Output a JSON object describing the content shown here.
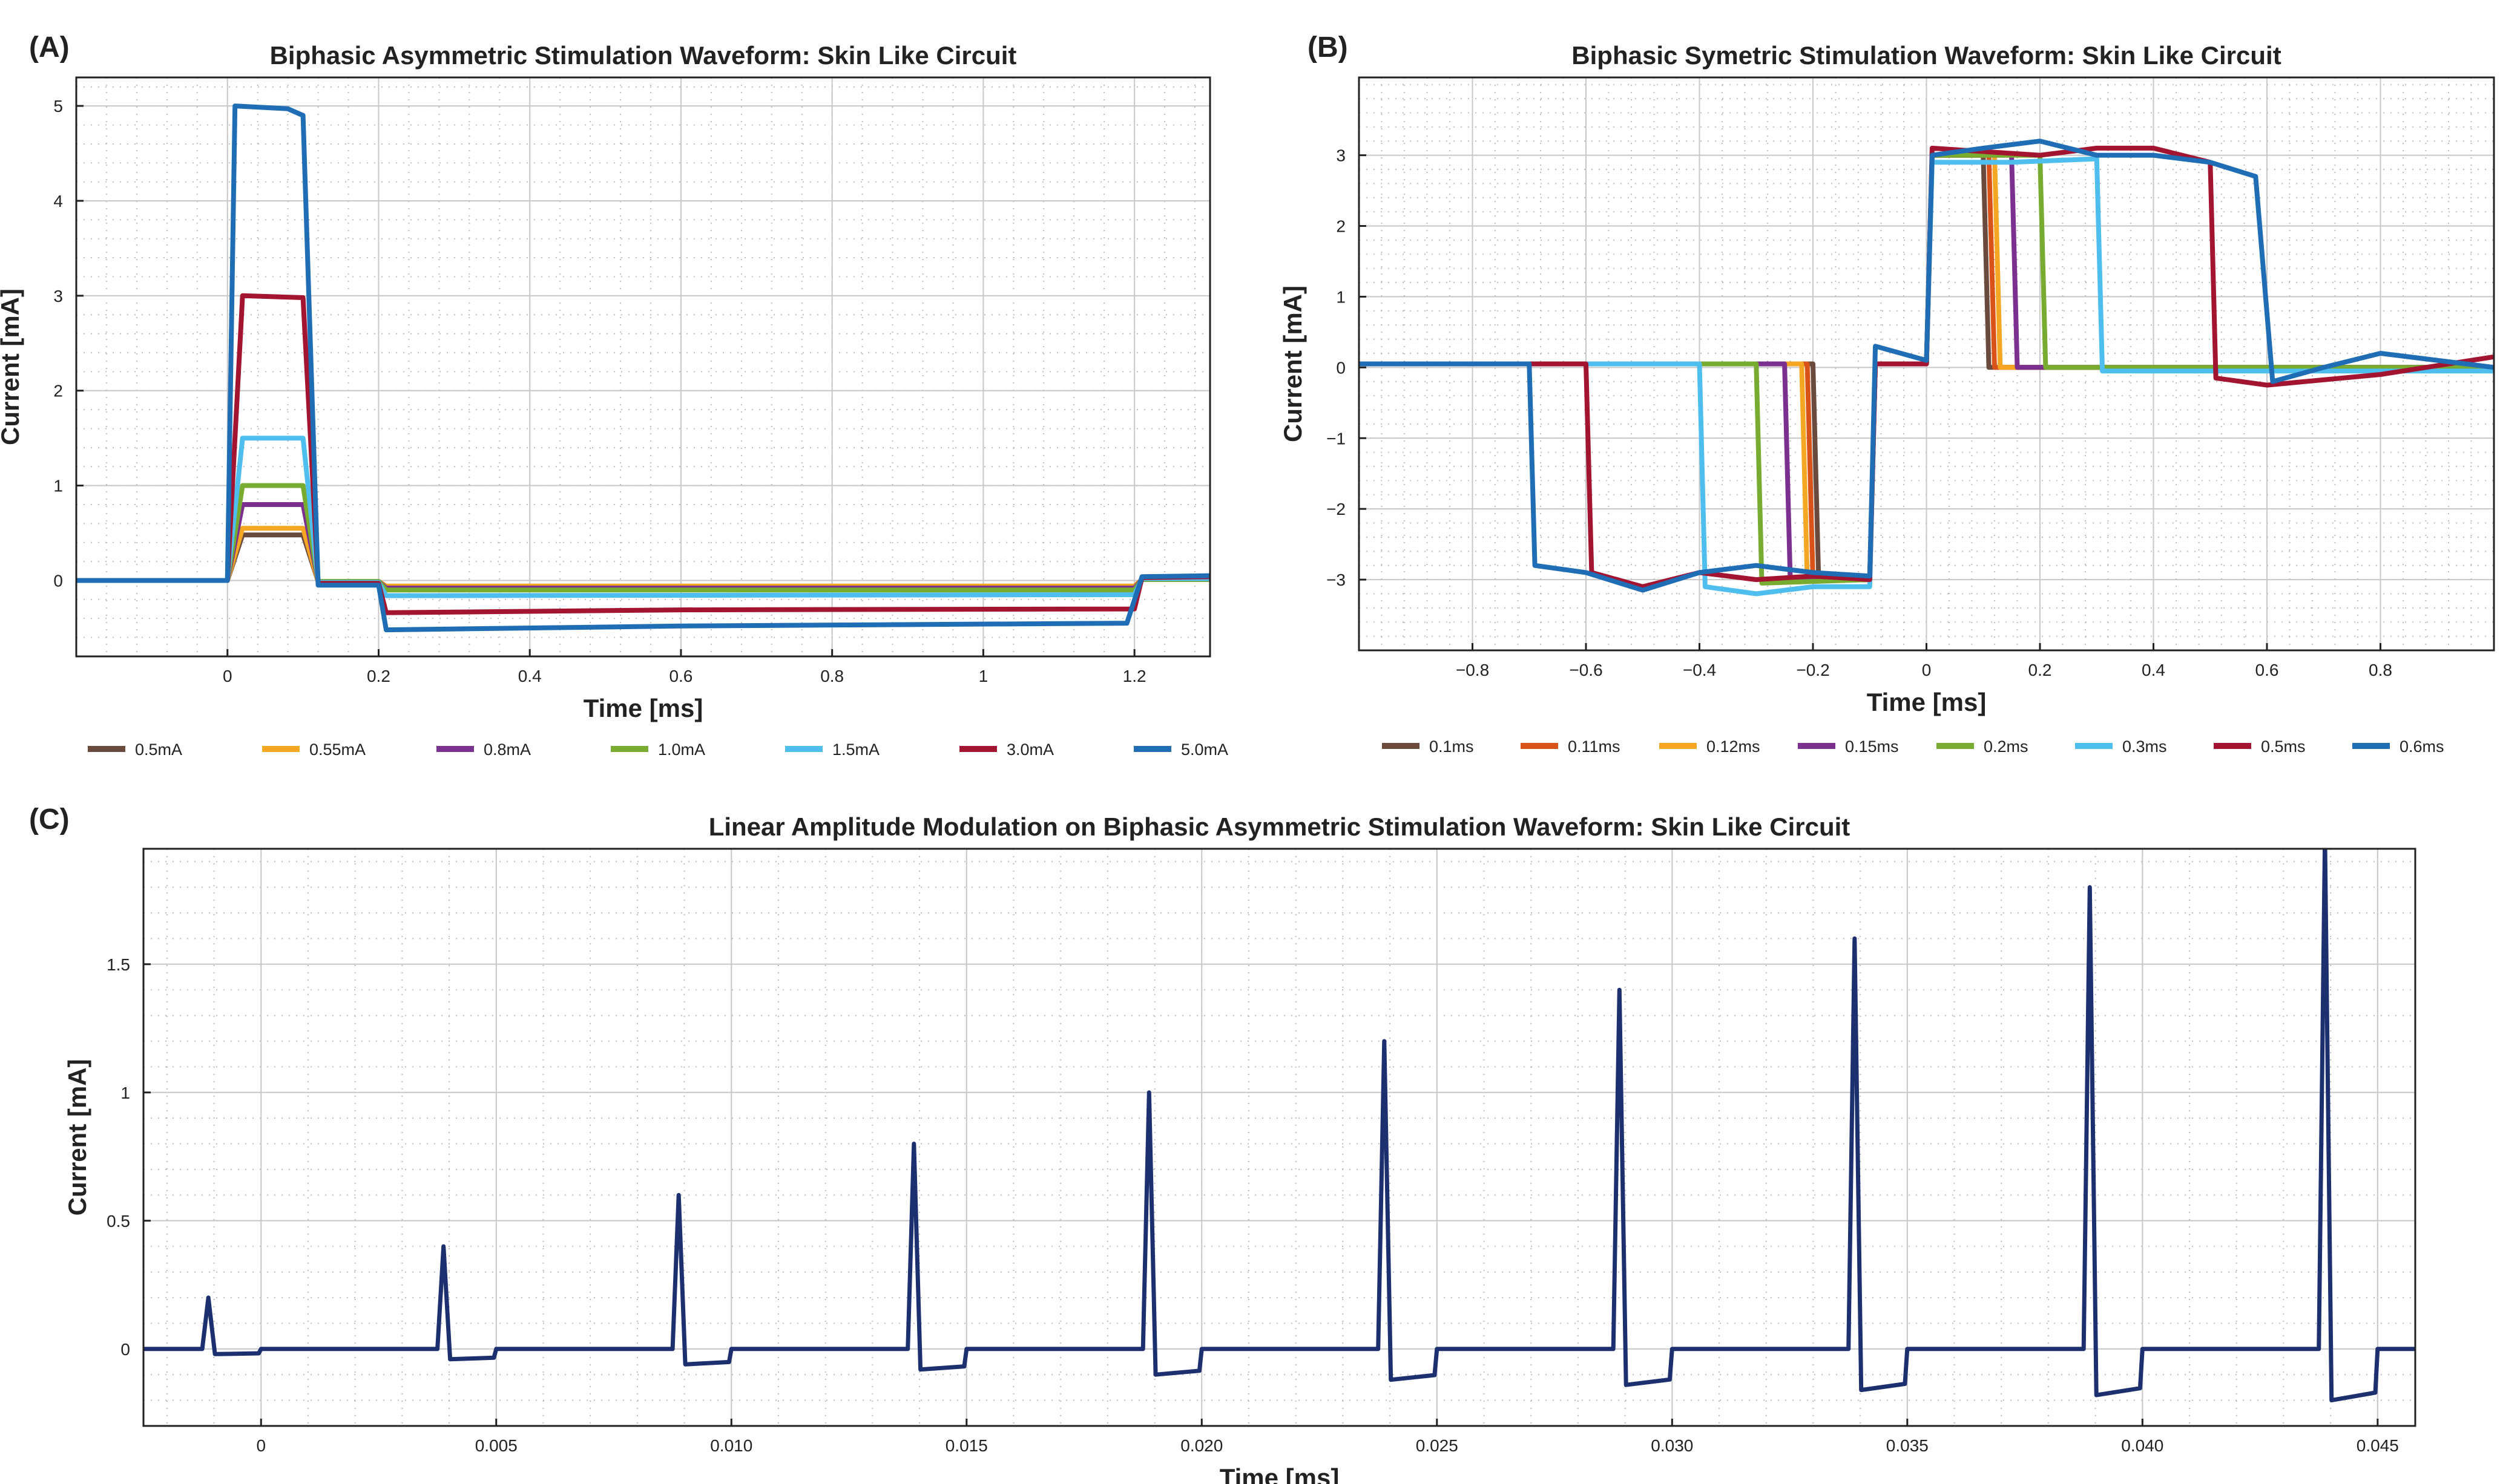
{
  "chart_data": [
    {
      "panel": "(A)",
      "type": "line",
      "title": "Biphasic Asymmetric Stimulation Waveform: Skin Like Circuit",
      "xlabel": "Time [ms]",
      "ylabel": "Current [mA]",
      "xlim": [
        -0.2,
        1.3
      ],
      "ylim": [
        -0.8,
        5.3
      ],
      "xticks": [
        0,
        0.2,
        0.4,
        0.6,
        0.8,
        1,
        1.2
      ],
      "xtick_labels": [
        "0",
        "0.2",
        "0.4",
        "0.6",
        "0.8",
        "1",
        "1.2"
      ],
      "yticks": [
        0,
        1,
        2,
        3,
        4,
        5
      ],
      "ytick_labels": [
        "0",
        "1",
        "2",
        "3",
        "4",
        "5"
      ],
      "grid": true,
      "legend_position": "bottom",
      "series": [
        {
          "name": "0.5mA",
          "color": "#6b4a3e",
          "values": [
            [
              -0.2,
              0
            ],
            [
              0,
              0
            ],
            [
              0.02,
              0.48
            ],
            [
              0.1,
              0.48
            ],
            [
              0.12,
              -0.01
            ],
            [
              0.2,
              -0.01
            ],
            [
              0.21,
              -0.06
            ],
            [
              1.2,
              -0.06
            ],
            [
              1.21,
              0.01
            ],
            [
              1.3,
              0.01
            ]
          ]
        },
        {
          "name": "0.55mA",
          "color": "#f5a623",
          "values": [
            [
              -0.2,
              0
            ],
            [
              0,
              0
            ],
            [
              0.02,
              0.55
            ],
            [
              0.1,
              0.55
            ],
            [
              0.12,
              -0.01
            ],
            [
              0.2,
              -0.01
            ],
            [
              0.21,
              -0.06
            ],
            [
              1.2,
              -0.06
            ],
            [
              1.21,
              0.01
            ],
            [
              1.3,
              0.01
            ]
          ]
        },
        {
          "name": "0.8mA",
          "color": "#7b2f8f",
          "values": [
            [
              -0.2,
              0
            ],
            [
              0,
              0
            ],
            [
              0.02,
              0.8
            ],
            [
              0.1,
              0.8
            ],
            [
              0.12,
              -0.01
            ],
            [
              0.2,
              -0.01
            ],
            [
              0.21,
              -0.08
            ],
            [
              1.2,
              -0.08
            ],
            [
              1.21,
              0.01
            ],
            [
              1.3,
              0.01
            ]
          ]
        },
        {
          "name": "1.0mA",
          "color": "#77ac30",
          "values": [
            [
              -0.2,
              0
            ],
            [
              0,
              0
            ],
            [
              0.02,
              1.0
            ],
            [
              0.1,
              1.0
            ],
            [
              0.12,
              -0.01
            ],
            [
              0.2,
              -0.01
            ],
            [
              0.21,
              -0.1
            ],
            [
              1.2,
              -0.1
            ],
            [
              1.21,
              0.01
            ],
            [
              1.3,
              0.01
            ]
          ]
        },
        {
          "name": "1.5mA",
          "color": "#4dbeee",
          "values": [
            [
              -0.2,
              0
            ],
            [
              0,
              0
            ],
            [
              0.02,
              1.5
            ],
            [
              0.1,
              1.5
            ],
            [
              0.12,
              -0.02
            ],
            [
              0.2,
              -0.02
            ],
            [
              0.21,
              -0.16
            ],
            [
              1.2,
              -0.15
            ],
            [
              1.21,
              0.02
            ],
            [
              1.3,
              0.02
            ]
          ]
        },
        {
          "name": "3.0mA",
          "color": "#a2142f",
          "values": [
            [
              -0.2,
              0
            ],
            [
              0,
              0
            ],
            [
              0.02,
              3.0
            ],
            [
              0.1,
              2.98
            ],
            [
              0.12,
              -0.03
            ],
            [
              0.2,
              -0.03
            ],
            [
              0.21,
              -0.34
            ],
            [
              0.6,
              -0.31
            ],
            [
              1.2,
              -0.3
            ],
            [
              1.21,
              0.03
            ],
            [
              1.3,
              0.04
            ]
          ]
        },
        {
          "name": "5.0mA",
          "color": "#1f6db5",
          "values": [
            [
              -0.2,
              0
            ],
            [
              0,
              0
            ],
            [
              0.01,
              5.0
            ],
            [
              0.08,
              4.97
            ],
            [
              0.1,
              4.9
            ],
            [
              0.12,
              -0.05
            ],
            [
              0.2,
              -0.05
            ],
            [
              0.21,
              -0.52
            ],
            [
              0.6,
              -0.48
            ],
            [
              1.19,
              -0.45
            ],
            [
              1.21,
              0.04
            ],
            [
              1.3,
              0.05
            ]
          ]
        }
      ]
    },
    {
      "panel": "(B)",
      "type": "line",
      "title": "Biphasic Symetric Stimulation Waveform: Skin Like Circuit",
      "xlabel": "Time [ms]",
      "ylabel": "Current [mA]",
      "xlim": [
        -1.0,
        1.0
      ],
      "ylim": [
        -4.0,
        4.1
      ],
      "xticks": [
        -0.8,
        -0.6,
        -0.4,
        -0.2,
        0,
        0.2,
        0.4,
        0.6,
        0.8
      ],
      "xtick_labels": [
        "−0.8",
        "−0.6",
        "−0.4",
        "−0.2",
        "0",
        "0.2",
        "0.4",
        "0.6",
        "0.8"
      ],
      "yticks": [
        -3,
        -2,
        -1,
        0,
        1,
        2,
        3
      ],
      "ytick_labels": [
        "−3",
        "−2",
        "−1",
        "0",
        "1",
        "2",
        "3"
      ],
      "grid": true,
      "legend_position": "bottom",
      "series": [
        {
          "name": "0.1ms",
          "color": "#6b4a3e",
          "values": [
            [
              -1.0,
              0.05
            ],
            [
              -0.2,
              0.05
            ],
            [
              -0.19,
              -3.0
            ],
            [
              -0.1,
              -3.0
            ],
            [
              -0.09,
              0.05
            ],
            [
              0,
              0.05
            ],
            [
              0.01,
              3.0
            ],
            [
              0.1,
              3.0
            ],
            [
              0.11,
              0.0
            ],
            [
              1.0,
              0.0
            ]
          ]
        },
        {
          "name": "0.11ms",
          "color": "#d95319",
          "values": [
            [
              -1.0,
              0.05
            ],
            [
              -0.21,
              0.05
            ],
            [
              -0.2,
              -3.0
            ],
            [
              -0.1,
              -3.0
            ],
            [
              -0.09,
              0.05
            ],
            [
              0,
              0.05
            ],
            [
              0.01,
              3.0
            ],
            [
              0.11,
              3.0
            ],
            [
              0.12,
              0.0
            ],
            [
              1.0,
              0.0
            ]
          ]
        },
        {
          "name": "0.12ms",
          "color": "#f5a623",
          "values": [
            [
              -1.0,
              0.05
            ],
            [
              -0.22,
              0.05
            ],
            [
              -0.21,
              -3.0
            ],
            [
              -0.1,
              -3.0
            ],
            [
              -0.09,
              0.05
            ],
            [
              0,
              0.05
            ],
            [
              0.01,
              3.0
            ],
            [
              0.12,
              3.0
            ],
            [
              0.13,
              0.0
            ],
            [
              1.0,
              0.0
            ]
          ]
        },
        {
          "name": "0.15ms",
          "color": "#7b2f8f",
          "values": [
            [
              -1.0,
              0.05
            ],
            [
              -0.25,
              0.05
            ],
            [
              -0.24,
              -3.0
            ],
            [
              -0.1,
              -3.0
            ],
            [
              -0.09,
              0.05
            ],
            [
              0,
              0.05
            ],
            [
              0.01,
              3.0
            ],
            [
              0.15,
              3.0
            ],
            [
              0.16,
              0.0
            ],
            [
              1.0,
              0.0
            ]
          ]
        },
        {
          "name": "0.2ms",
          "color": "#77ac30",
          "values": [
            [
              -1.0,
              0.05
            ],
            [
              -0.3,
              0.05
            ],
            [
              -0.29,
              -3.05
            ],
            [
              -0.1,
              -3.0
            ],
            [
              -0.09,
              0.05
            ],
            [
              0,
              0.05
            ],
            [
              0.01,
              3.0
            ],
            [
              0.2,
              3.0
            ],
            [
              0.21,
              0.0
            ],
            [
              1.0,
              0.0
            ]
          ]
        },
        {
          "name": "0.3ms",
          "color": "#4dbeee",
          "values": [
            [
              -1.0,
              0.05
            ],
            [
              -0.4,
              0.05
            ],
            [
              -0.39,
              -3.1
            ],
            [
              -0.3,
              -3.2
            ],
            [
              -0.2,
              -3.1
            ],
            [
              -0.1,
              -3.1
            ],
            [
              -0.09,
              0.05
            ],
            [
              0,
              0.05
            ],
            [
              0.01,
              2.9
            ],
            [
              0.15,
              2.9
            ],
            [
              0.3,
              2.95
            ],
            [
              0.31,
              -0.05
            ],
            [
              1.0,
              -0.05
            ]
          ]
        },
        {
          "name": "0.5ms",
          "color": "#a2142f",
          "values": [
            [
              -1.0,
              0.05
            ],
            [
              -0.6,
              0.05
            ],
            [
              -0.59,
              -2.9
            ],
            [
              -0.5,
              -3.1
            ],
            [
              -0.4,
              -2.9
            ],
            [
              -0.3,
              -3.0
            ],
            [
              -0.2,
              -2.95
            ],
            [
              -0.1,
              -3.0
            ],
            [
              -0.09,
              0.05
            ],
            [
              0,
              0.05
            ],
            [
              0.01,
              3.1
            ],
            [
              0.2,
              3.0
            ],
            [
              0.3,
              3.1
            ],
            [
              0.4,
              3.1
            ],
            [
              0.5,
              2.9
            ],
            [
              0.51,
              -0.15
            ],
            [
              0.6,
              -0.25
            ],
            [
              0.8,
              -0.1
            ],
            [
              1.0,
              0.15
            ]
          ]
        },
        {
          "name": "0.6ms",
          "color": "#1f6db5",
          "values": [
            [
              -1.0,
              0.05
            ],
            [
              -0.7,
              0.05
            ],
            [
              -0.69,
              -2.8
            ],
            [
              -0.6,
              -2.9
            ],
            [
              -0.5,
              -3.15
            ],
            [
              -0.4,
              -2.9
            ],
            [
              -0.3,
              -2.8
            ],
            [
              -0.2,
              -2.9
            ],
            [
              -0.1,
              -2.95
            ],
            [
              -0.09,
              0.3
            ],
            [
              0,
              0.1
            ],
            [
              0.01,
              3.0
            ],
            [
              0.1,
              3.1
            ],
            [
              0.2,
              3.2
            ],
            [
              0.3,
              3.0
            ],
            [
              0.4,
              3.0
            ],
            [
              0.5,
              2.9
            ],
            [
              0.58,
              2.7
            ],
            [
              0.61,
              -0.2
            ],
            [
              0.7,
              0.0
            ],
            [
              0.8,
              0.2
            ],
            [
              1.0,
              0.0
            ]
          ]
        }
      ]
    },
    {
      "panel": "(C)",
      "type": "line",
      "title": "Linear Amplitude Modulation on Biphasic Asymmetric Stimulation Waveform: Skin Like Circuit",
      "xlabel": "Time [ms]",
      "ylabel": "Current [mA]",
      "xlim": [
        -0.0025,
        0.0458
      ],
      "ylim": [
        -0.3,
        1.95
      ],
      "xticks": [
        0,
        0.005,
        0.01,
        0.015,
        0.02,
        0.025,
        0.03,
        0.035,
        0.04,
        0.045
      ],
      "xtick_labels": [
        "0",
        "0.005",
        "0.010",
        "0.015",
        "0.020",
        "0.025",
        "0.030",
        "0.035",
        "0.040",
        "0.045"
      ],
      "yticks": [
        0,
        0.5,
        1,
        1.5
      ],
      "ytick_labels": [
        "0",
        "0.5",
        "1",
        "1.5"
      ],
      "grid": true,
      "line_color": "#1c2f6e",
      "pulse_start_ms": [
        -0.0012,
        0.0038,
        0.0088,
        0.0138,
        0.0188,
        0.0238,
        0.0288,
        0.0338,
        0.0388,
        0.0438
      ],
      "pulse_peak_mA": [
        0.2,
        0.4,
        0.6,
        0.8,
        1.0,
        1.2,
        1.4,
        1.6,
        1.8,
        2.0
      ],
      "pulse_negative_mA": [
        -0.02,
        -0.04,
        -0.06,
        -0.08,
        -0.1,
        -0.12,
        -0.14,
        -0.16,
        -0.18,
        -0.2
      ]
    }
  ]
}
